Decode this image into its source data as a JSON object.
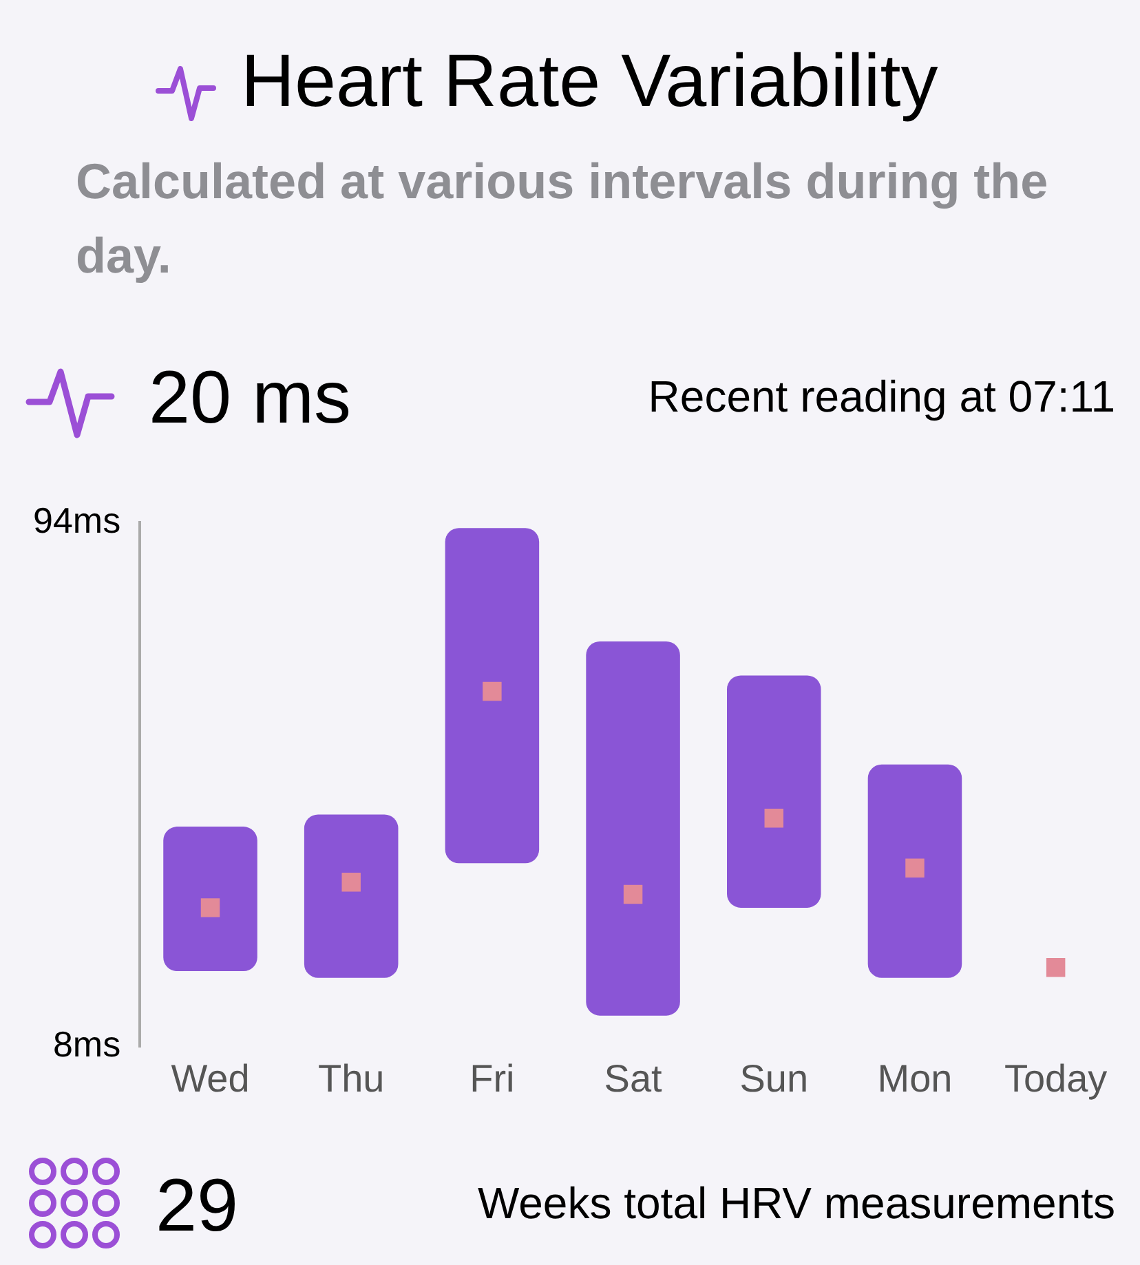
{
  "chart_data": {
    "type": "bar",
    "title": "Heart Rate Variability",
    "subtitle": "Calculated at various intervals during the day.",
    "categories": [
      "Wed",
      "Thu",
      "Fri",
      "Sat",
      "Sun",
      "Mon",
      "Today"
    ],
    "series": [
      {
        "color": "#8a55d6",
        "base": [
          20.4,
          19.3,
          38.1,
          13.1,
          30.8,
          19.3,
          null
        ],
        "values": [
          23.7,
          26.8,
          55,
          61.4,
          38.1,
          35,
          null
        ]
      },
      {
        "type": "scatter",
        "marker": "square",
        "color": "#e38a98",
        "values": [
          30.8,
          35,
          66.3,
          33,
          45.5,
          37.3,
          21
        ]
      }
    ],
    "ylim": [
      8,
      94
    ],
    "yticks": [
      {
        "value": 8,
        "label": "8ms"
      },
      {
        "value": 94,
        "label": "94ms"
      }
    ],
    "grid": false,
    "annotations": [
      "20 ms",
      "Recent reading at 07:11",
      "29",
      "Weeks total HRV measurements"
    ]
  }
}
